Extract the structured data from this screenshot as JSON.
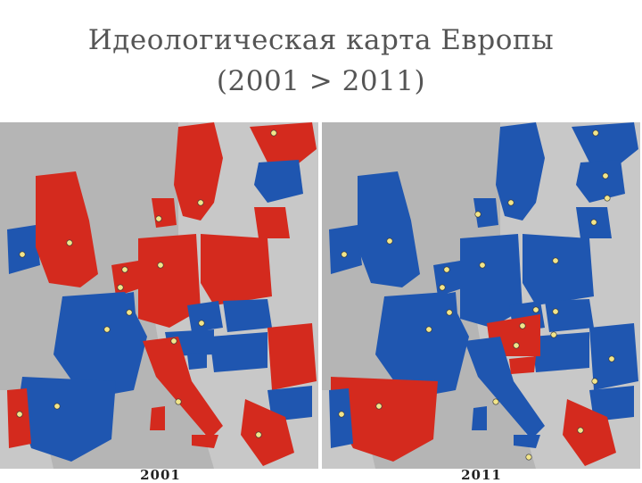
{
  "title": {
    "line1": "Идеологическая карта Европы",
    "line2": "(2001 > 2011)"
  },
  "maps": [
    {
      "year_label": "2001"
    },
    {
      "year_label": "2011"
    }
  ],
  "colors": {
    "left_red": "#d42a1e",
    "right_blue": "#1f56b0",
    "non_eu_gray": "#c8c8c8",
    "sea": "#b5b5b5",
    "star": "#f2e58a"
  }
}
